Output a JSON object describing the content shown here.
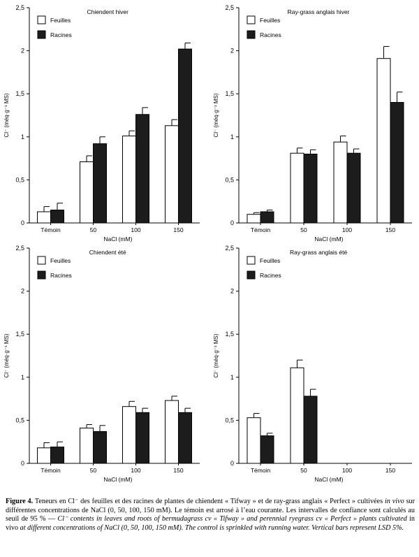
{
  "chart_data": [
    {
      "type": "bar",
      "title": "Chiendent hiver",
      "xlabel": "NaCl (mM)",
      "ylabel": "Cl⁻ (méq·g⁻¹ MS)",
      "categories": [
        "Témoin",
        "50",
        "100",
        "150"
      ],
      "ylim": [
        0,
        2.5
      ],
      "yticks": [
        "0",
        "0,5",
        "1",
        "1,5",
        "2",
        "2,5"
      ],
      "legend_position": "top-left",
      "series": [
        {
          "name": "Feuilles",
          "values": [
            0.13,
            0.71,
            1.01,
            1.13
          ],
          "errors": [
            0.06,
            0.07,
            0.06,
            0.07
          ]
        },
        {
          "name": "Racines",
          "values": [
            0.15,
            0.92,
            1.26,
            2.02
          ],
          "errors": [
            0.08,
            0.08,
            0.08,
            0.07
          ]
        }
      ]
    },
    {
      "type": "bar",
      "title": "Ray-grass anglais hiver",
      "xlabel": "NaCl (mM)",
      "ylabel": "Cl⁻ (méq·g⁻¹ MS)",
      "categories": [
        "Témoin",
        "50",
        "100",
        "150"
      ],
      "ylim": [
        0,
        2.5
      ],
      "yticks": [
        "0",
        "0,5",
        "1",
        "1,5",
        "2",
        "2,5"
      ],
      "legend_position": "top-left",
      "series": [
        {
          "name": "Feuilles",
          "values": [
            0.1,
            0.81,
            0.94,
            1.91
          ],
          "errors": [
            0.02,
            0.06,
            0.07,
            0.14
          ]
        },
        {
          "name": "Racines",
          "values": [
            0.13,
            0.8,
            0.81,
            1.4
          ],
          "errors": [
            0.02,
            0.05,
            0.05,
            0.12
          ]
        }
      ]
    },
    {
      "type": "bar",
      "title": "Chiendent été",
      "xlabel": "NaCl (mM)",
      "ylabel": "Cl⁻ (méq·g⁻¹ MS)",
      "categories": [
        "Témoin",
        "50",
        "100",
        "150"
      ],
      "ylim": [
        0,
        2.5
      ],
      "yticks": [
        "0",
        "0,5",
        "1",
        "1,5",
        "2",
        "2,5"
      ],
      "legend_position": "top-left",
      "series": [
        {
          "name": "Feuilles",
          "values": [
            0.18,
            0.41,
            0.66,
            0.73
          ],
          "errors": [
            0.06,
            0.04,
            0.06,
            0.05
          ]
        },
        {
          "name": "Racines",
          "values": [
            0.19,
            0.37,
            0.59,
            0.59
          ],
          "errors": [
            0.06,
            0.07,
            0.05,
            0.05
          ]
        }
      ]
    },
    {
      "type": "bar",
      "title": "Ray-grass anglais été",
      "xlabel": "NaCl (mM)",
      "ylabel": "Cl⁻ (méq·g⁻¹ MS)",
      "categories": [
        "Témoin",
        "50",
        "100",
        "150"
      ],
      "ylim": [
        0,
        2.5
      ],
      "yticks": [
        "0",
        "0,5",
        "1",
        "1,5",
        "2",
        "2,5"
      ],
      "legend_position": "top-left",
      "series": [
        {
          "name": "Feuilles",
          "values": [
            0.53,
            1.11,
            null,
            null
          ],
          "errors": [
            0.05,
            0.09,
            null,
            null
          ]
        },
        {
          "name": "Racines",
          "values": [
            0.32,
            0.78,
            null,
            null
          ],
          "errors": [
            0.03,
            0.08,
            null,
            null
          ]
        }
      ]
    }
  ],
  "caption": {
    "label": "Figure 4.",
    "fr": "Teneurs en Cl⁻ des feuilles et des racines de plantes de chiendent « Tifway » et de ray-grass anglais « Perfect » cultivées",
    "fr_italic": "in vivo",
    "fr_rest": "sur différentes concentrations de NaCl (0, 50, 100, 150 mM). Le témoin est arrosé à l’eau courante. Les intervalles de confiance sont calculés au seuil de 95 % —",
    "en_a": "Cl⁻ contents in leaves and roots of bermudagrass cv « Tifway » and perennial ryegrass cv « Perfect » plants cultivated",
    "en_plain": "in vivo",
    "en_b": "at different concentrations of NaCl (0, 50, 100, 150 mM). The control is sprinkled with running water. Vertical bars represent LSD 5%."
  }
}
